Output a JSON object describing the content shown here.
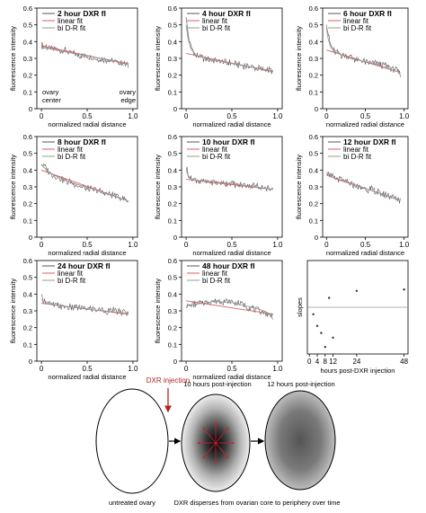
{
  "chart_data": [
    {
      "type": "line",
      "title": "2 hour DXR fl",
      "xlabel": "normalized radial distance",
      "ylabel": "fluorescence intensity",
      "xlim": [
        -0.05,
        1.05
      ],
      "ylim": [
        0,
        0.6
      ],
      "xticks": [
        0,
        0.5,
        1.0
      ],
      "xtick_labels": [
        "0",
        "0.5",
        "1.0"
      ],
      "yticks": [
        0,
        0.1,
        0.2,
        0.3,
        0.4,
        0.5,
        0.6
      ],
      "ytick_labels": [
        "0",
        "0.1",
        "0.2",
        "0.3",
        "0.4",
        "0.5",
        "0.6"
      ],
      "legend": [
        "2 hour DXR fl",
        "linear fit",
        "bi D-R fit"
      ],
      "legend_position": "top-left",
      "annotations": [
        "ovary center",
        "ovary edge"
      ],
      "series": [
        {
          "name": "2 hour DXR fl",
          "x": [
            0,
            0.1,
            0.2,
            0.3,
            0.4,
            0.5,
            0.6,
            0.7,
            0.8,
            0.9,
            0.95
          ],
          "y": [
            0.38,
            0.36,
            0.35,
            0.34,
            0.32,
            0.31,
            0.3,
            0.29,
            0.28,
            0.27,
            0.26
          ]
        },
        {
          "name": "linear fit",
          "x": [
            0,
            0.95
          ],
          "y": [
            0.375,
            0.265
          ]
        },
        {
          "name": "bi D-R fit",
          "x": [
            0,
            0.95
          ],
          "y": [
            0.365,
            0.27
          ]
        }
      ]
    },
    {
      "type": "line",
      "title": "4 hour DXR fl",
      "xlabel": "normalized radial distance",
      "ylabel": "fluorescence intensity",
      "xlim": [
        -0.05,
        1.05
      ],
      "ylim": [
        0,
        0.6
      ],
      "xticks": [
        0,
        0.5,
        1.0
      ],
      "xtick_labels": [
        "0",
        "0.5",
        "1.0"
      ],
      "yticks": [
        0,
        0.1,
        0.2,
        0.3,
        0.4,
        0.5,
        0.6
      ],
      "ytick_labels": [
        "0",
        "0.1",
        "0.2",
        "0.3",
        "0.4",
        "0.5",
        "0.6"
      ],
      "legend": [
        "4 hour DXR fl",
        "linear fit",
        "bi D-R fit"
      ],
      "legend_position": "top-left",
      "series": [
        {
          "name": "4 hour DXR fl",
          "x": [
            0,
            0.02,
            0.05,
            0.1,
            0.2,
            0.3,
            0.4,
            0.5,
            0.6,
            0.7,
            0.8,
            0.9,
            0.95
          ],
          "y": [
            0.55,
            0.45,
            0.37,
            0.32,
            0.3,
            0.29,
            0.28,
            0.27,
            0.26,
            0.25,
            0.24,
            0.23,
            0.22
          ]
        },
        {
          "name": "linear fit",
          "x": [
            0,
            0.95
          ],
          "y": [
            0.33,
            0.22
          ]
        },
        {
          "name": "bi D-R fit",
          "x": [
            0,
            0.02,
            0.05,
            0.1,
            0.3,
            0.6,
            0.95
          ],
          "y": [
            0.5,
            0.42,
            0.36,
            0.32,
            0.29,
            0.26,
            0.225
          ]
        }
      ]
    },
    {
      "type": "line",
      "title": "6 hour DXR fl",
      "xlabel": "normalized radial distance",
      "ylabel": "fluorescence intensity",
      "xlim": [
        -0.05,
        1.05
      ],
      "ylim": [
        0,
        0.6
      ],
      "xticks": [
        0,
        0.5,
        1.0
      ],
      "xtick_labels": [
        "0",
        "0.5",
        "1.0"
      ],
      "yticks": [
        0,
        0.1,
        0.2,
        0.3,
        0.4,
        0.5,
        0.6
      ],
      "ytick_labels": [
        "0",
        "0.1",
        "0.2",
        "0.3",
        "0.4",
        "0.5",
        "0.6"
      ],
      "legend": [
        "6 hour DXR fl",
        "linear fit",
        "bi D-R fit"
      ],
      "legend_position": "top-left",
      "series": [
        {
          "name": "6 hour DXR fl",
          "x": [
            0,
            0.02,
            0.05,
            0.1,
            0.2,
            0.3,
            0.4,
            0.5,
            0.6,
            0.7,
            0.8,
            0.9,
            0.95
          ],
          "y": [
            0.52,
            0.45,
            0.38,
            0.34,
            0.32,
            0.31,
            0.29,
            0.28,
            0.27,
            0.26,
            0.25,
            0.23,
            0.21
          ]
        },
        {
          "name": "linear fit",
          "x": [
            0,
            0.95
          ],
          "y": [
            0.35,
            0.215
          ]
        },
        {
          "name": "bi D-R fit",
          "x": [
            0,
            0.02,
            0.05,
            0.1,
            0.3,
            0.6,
            0.95
          ],
          "y": [
            0.48,
            0.42,
            0.37,
            0.34,
            0.3,
            0.27,
            0.215
          ]
        }
      ]
    },
    {
      "type": "line",
      "title": "8 hour DXR fl",
      "xlabel": "normalized radial distance",
      "ylabel": "fluorescence intensity",
      "xlim": [
        -0.05,
        1.05
      ],
      "ylim": [
        0,
        0.6
      ],
      "xticks": [
        0,
        0.5,
        1.0
      ],
      "xtick_labels": [
        "0",
        "0.5",
        "1.0"
      ],
      "yticks": [
        0,
        0.1,
        0.2,
        0.3,
        0.4,
        0.5,
        0.6
      ],
      "ytick_labels": [
        "0",
        "0.1",
        "0.2",
        "0.3",
        "0.4",
        "0.5",
        "0.6"
      ],
      "legend": [
        "8 hour DXR fl",
        "linear fit",
        "bi D-R fit"
      ],
      "legend_position": "top-left",
      "series": [
        {
          "name": "8 hour DXR fl",
          "x": [
            0,
            0.05,
            0.1,
            0.2,
            0.3,
            0.4,
            0.5,
            0.6,
            0.7,
            0.8,
            0.9,
            0.95
          ],
          "y": [
            0.44,
            0.41,
            0.38,
            0.35,
            0.33,
            0.31,
            0.29,
            0.28,
            0.26,
            0.25,
            0.23,
            0.21
          ]
        },
        {
          "name": "linear fit",
          "x": [
            0,
            0.95
          ],
          "y": [
            0.4,
            0.215
          ]
        },
        {
          "name": "bi D-R fit",
          "x": [
            0,
            0.1,
            0.3,
            0.6,
            0.95
          ],
          "y": [
            0.43,
            0.38,
            0.33,
            0.28,
            0.215
          ]
        }
      ]
    },
    {
      "type": "line",
      "title": "10 hour DXR fl",
      "xlabel": "normalized radial distance",
      "ylabel": "fluorescence intensity",
      "xlim": [
        -0.05,
        1.05
      ],
      "ylim": [
        0,
        0.6
      ],
      "xticks": [
        0,
        0.5,
        1.0
      ],
      "xtick_labels": [
        "0",
        "0.5",
        "1.0"
      ],
      "yticks": [
        0,
        0.1,
        0.2,
        0.3,
        0.4,
        0.5,
        0.6
      ],
      "ytick_labels": [
        "0",
        "0.1",
        "0.2",
        "0.3",
        "0.4",
        "0.5",
        "0.6"
      ],
      "legend": [
        "10 hour DXR fl",
        "linear fit",
        "bi D-R fit"
      ],
      "legend_position": "top-left",
      "series": [
        {
          "name": "10 hour DXR fl",
          "x": [
            0,
            0.02,
            0.05,
            0.1,
            0.2,
            0.3,
            0.4,
            0.5,
            0.6,
            0.7,
            0.8,
            0.9,
            0.95
          ],
          "y": [
            0.42,
            0.38,
            0.35,
            0.34,
            0.33,
            0.33,
            0.32,
            0.32,
            0.31,
            0.31,
            0.3,
            0.29,
            0.28
          ]
        },
        {
          "name": "linear fit",
          "x": [
            0,
            0.95
          ],
          "y": [
            0.345,
            0.285
          ]
        },
        {
          "name": "bi D-R fit",
          "x": [
            0,
            0.02,
            0.05,
            0.1,
            0.5,
            0.95
          ],
          "y": [
            0.4,
            0.37,
            0.35,
            0.34,
            0.32,
            0.285
          ]
        }
      ]
    },
    {
      "type": "line",
      "title": "12 hour DXR fl",
      "xlabel": "normalized radial distance",
      "ylabel": "fluorescence intensity",
      "xlim": [
        -0.05,
        1.05
      ],
      "ylim": [
        0,
        0.6
      ],
      "xticks": [
        0,
        0.5,
        1.0
      ],
      "xtick_labels": [
        "0",
        "0.5",
        "1.0"
      ],
      "yticks": [
        0,
        0.1,
        0.2,
        0.3,
        0.4,
        0.5,
        0.6
      ],
      "ytick_labels": [
        "0",
        "0.1",
        "0.2",
        "0.3",
        "0.4",
        "0.5",
        "0.6"
      ],
      "legend": [
        "12 hour DXR fl",
        "linear fit",
        "bi D-R fit"
      ],
      "legend_position": "top-left",
      "series": [
        {
          "name": "12 hour DXR fl",
          "x": [
            0,
            0.05,
            0.1,
            0.2,
            0.3,
            0.4,
            0.5,
            0.6,
            0.7,
            0.8,
            0.9,
            0.95
          ],
          "y": [
            0.4,
            0.37,
            0.35,
            0.34,
            0.32,
            0.3,
            0.29,
            0.28,
            0.26,
            0.25,
            0.23,
            0.22
          ]
        },
        {
          "name": "linear fit",
          "x": [
            0,
            0.95
          ],
          "y": [
            0.37,
            0.22
          ]
        },
        {
          "name": "bi D-R fit",
          "x": [
            0,
            0.1,
            0.5,
            0.95
          ],
          "y": [
            0.39,
            0.35,
            0.29,
            0.22
          ]
        }
      ]
    },
    {
      "type": "line",
      "title": "24 hour DXR fl",
      "xlabel": "normalized radial distance",
      "ylabel": "fluorescence intensity",
      "xlim": [
        -0.05,
        1.05
      ],
      "ylim": [
        0,
        0.6
      ],
      "xticks": [
        0,
        0.5,
        1.0
      ],
      "xtick_labels": [
        "0",
        "0.5",
        "1.0"
      ],
      "yticks": [
        0,
        0.1,
        0.2,
        0.3,
        0.4,
        0.5,
        0.6
      ],
      "ytick_labels": [
        "0",
        "0.1",
        "0.2",
        "0.3",
        "0.4",
        "0.5",
        "0.6"
      ],
      "legend": [
        "24 hour DXR fl",
        "linear fit",
        "bi D-R fit"
      ],
      "legend_position": "top-left",
      "series": [
        {
          "name": "24 hour DXR fl",
          "x": [
            0,
            0.05,
            0.1,
            0.2,
            0.3,
            0.4,
            0.5,
            0.6,
            0.7,
            0.8,
            0.9,
            0.95
          ],
          "y": [
            0.38,
            0.36,
            0.34,
            0.33,
            0.32,
            0.32,
            0.31,
            0.31,
            0.3,
            0.3,
            0.29,
            0.28
          ]
        },
        {
          "name": "linear fit",
          "x": [
            0,
            0.95
          ],
          "y": [
            0.345,
            0.28
          ]
        },
        {
          "name": "bi D-R fit",
          "x": [
            0,
            0.1,
            0.5,
            0.95
          ],
          "y": [
            0.37,
            0.34,
            0.31,
            0.285
          ]
        }
      ]
    },
    {
      "type": "line",
      "title": "48 hour DXR fl",
      "xlabel": "normalized radial distance",
      "ylabel": "fluorescence intensity",
      "xlim": [
        -0.05,
        1.05
      ],
      "ylim": [
        0,
        0.6
      ],
      "xticks": [
        0,
        0.5,
        1.0
      ],
      "xtick_labels": [
        "0",
        "0.5",
        "1.0"
      ],
      "yticks": [
        0,
        0.1,
        0.2,
        0.3,
        0.4,
        0.5,
        0.6
      ],
      "ytick_labels": [
        "0",
        "0.1",
        "0.2",
        "0.3",
        "0.4",
        "0.5",
        "0.6"
      ],
      "legend": [
        "48 hour DXR fl",
        "linear fit",
        "bi D-R fit"
      ],
      "legend_position": "top-left",
      "series": [
        {
          "name": "48 hour DXR fl",
          "x": [
            0,
            0.1,
            0.2,
            0.3,
            0.4,
            0.5,
            0.6,
            0.7,
            0.8,
            0.9,
            0.95
          ],
          "y": [
            0.33,
            0.34,
            0.35,
            0.36,
            0.36,
            0.35,
            0.34,
            0.32,
            0.3,
            0.28,
            0.27
          ]
        },
        {
          "name": "linear fit",
          "x": [
            0,
            0.95
          ],
          "y": [
            0.36,
            0.28
          ]
        },
        {
          "name": "bi D-R fit",
          "x": [
            0,
            0.3,
            0.5,
            0.8,
            0.95
          ],
          "y": [
            0.33,
            0.355,
            0.35,
            0.31,
            0.275
          ]
        }
      ]
    },
    {
      "type": "scatter",
      "title": "",
      "xlabel": "hours post-DXR injection",
      "ylabel": "slopes",
      "xlim": [
        -1,
        50
      ],
      "ylim": [
        -0.2,
        0
      ],
      "xticks": [
        0,
        4,
        8,
        12,
        24,
        48
      ],
      "xtick_labels": [
        "0",
        "4",
        "8",
        "12",
        "24",
        "48"
      ],
      "reference_line": -0.1,
      "series": [
        {
          "x": [
            2,
            4,
            6,
            8,
            10,
            12,
            24,
            48
          ],
          "y": [
            -0.115,
            -0.14,
            -0.155,
            -0.185,
            -0.08,
            -0.165,
            -0.065,
            -0.062
          ]
        }
      ]
    }
  ],
  "schematic": {
    "untreated_label": "untreated ovary",
    "injection_label": "DXR injection",
    "ten_hour_label": "10 hours post-injection",
    "twelve_hour_label": "12 hours post-injection",
    "caption": "DXR disperses from ovarian core to periphery over time",
    "colors": {
      "injection_arrow": "#b22222",
      "dispersion_arrows": "#cc2233"
    }
  },
  "colors": {
    "data_line": "#555555",
    "linear_fit": "#d95f5f",
    "bidr_fit": "#9a9a9a",
    "slope_points": "#333333"
  }
}
